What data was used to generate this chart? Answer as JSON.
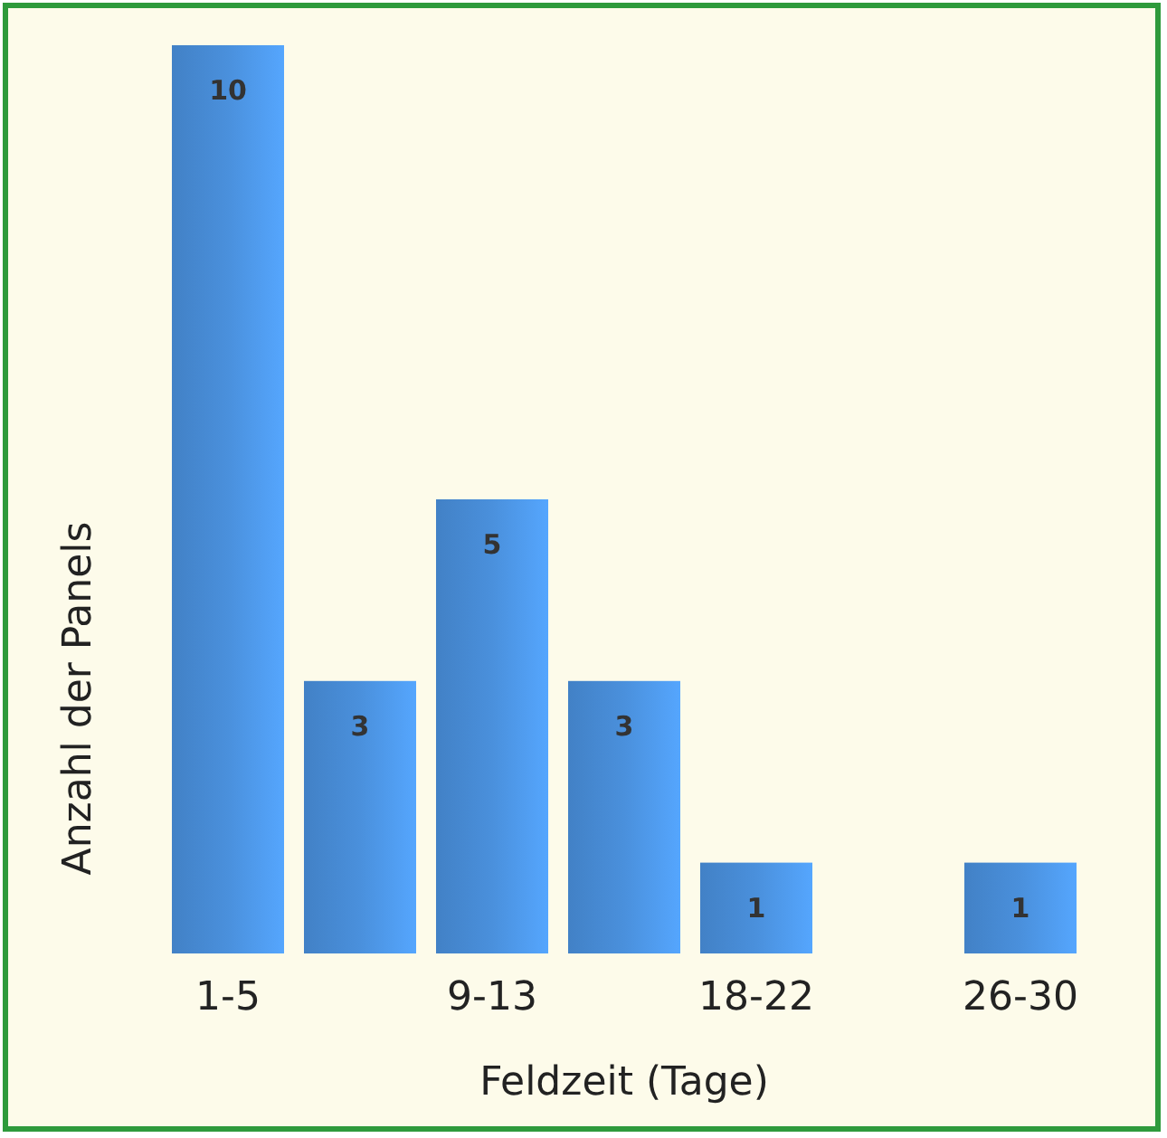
{
  "chart_data": {
    "type": "bar",
    "xlabel": "Feldzeit (Tage)",
    "ylabel": "Anzahl der Panels",
    "categories": [
      "1-5",
      null,
      "9-13",
      null,
      "18-22",
      null,
      "26-30"
    ],
    "values": [
      10,
      3,
      5,
      3,
      1,
      null,
      1
    ],
    "color": "#4a90dc",
    "data_labels": true
  }
}
